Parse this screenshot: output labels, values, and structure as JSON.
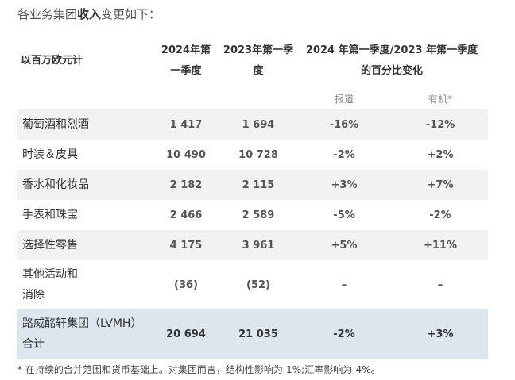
{
  "intro": {
    "prefix": "各业务集团",
    "bold": "收入",
    "suffix": "变更如下："
  },
  "table": {
    "unit_header": "以百万欧元计",
    "col_2024_line1": "2024年第",
    "col_2024_line2": "一季度",
    "col_2023_line1": "2023年第一季",
    "col_2023_line2": "度",
    "col_change_line1": "2024 年第一季度/2023 年第一季度",
    "col_change_line2": "的百分比变化",
    "sub_reported": "报道",
    "sub_organic": "有机*",
    "rows": [
      {
        "label": "葡萄酒和烈酒",
        "q1_2024": "1 417",
        "q1_2023": "1 694",
        "reported": "-16%",
        "organic": "-12%"
      },
      {
        "label": "时装＆皮具",
        "q1_2024": "10 490",
        "q1_2023": "10 728",
        "reported": "-2%",
        "organic": "+2%"
      },
      {
        "label": "香水和化妆品",
        "q1_2024": "2 182",
        "q1_2023": "2 115",
        "reported": "+3%",
        "organic": "+7%"
      },
      {
        "label": "手表和珠宝",
        "q1_2024": "2 466",
        "q1_2023": "2 589",
        "reported": "-5%",
        "organic": "-2%"
      },
      {
        "label": "选择性零售",
        "q1_2024": "4 175",
        "q1_2023": "3 961",
        "reported": "+5%",
        "organic": "+11%"
      }
    ],
    "other": {
      "label_line1": "其他活动和",
      "label_line2": "消除",
      "q1_2024": "(36)",
      "q1_2023": "(52)",
      "reported": "–",
      "organic": "–"
    },
    "total": {
      "label_line1": "路威酩轩集团（LVMH）",
      "label_line2": "合计",
      "q1_2024": "20 694",
      "q1_2023": "21 035",
      "reported": "-2%",
      "organic": "+3%"
    }
  },
  "footnote": "* 在持续的合并范围和货币基础上。对集团而言，结构性影响为-1%;汇率影响为-4%。",
  "colors": {
    "shade": "#f2f2f2",
    "total_bg": "#dbe6ee"
  }
}
